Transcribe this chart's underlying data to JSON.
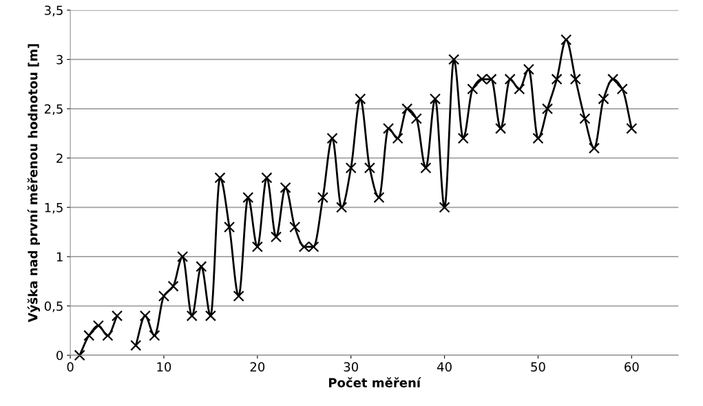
{
  "chart_data": {
    "type": "line",
    "xlabel": "Počet měření",
    "ylabel": "Výška nad první měřenou hodnotou [m]",
    "x": [
      1,
      2,
      3,
      4,
      5,
      6,
      7,
      8,
      9,
      10,
      11,
      12,
      13,
      14,
      15,
      16,
      17,
      18,
      19,
      20,
      21,
      22,
      23,
      24,
      25,
      26,
      27,
      28,
      29,
      30,
      31,
      32,
      33,
      34,
      35,
      36,
      37,
      38,
      39,
      40,
      41,
      42,
      43,
      44,
      45,
      46,
      47,
      48,
      49,
      50,
      51,
      52,
      53,
      54,
      55,
      56,
      57,
      58,
      59,
      60
    ],
    "series": [
      {
        "color": "#000000",
        "values": [
          0,
          0.2,
          0.3,
          0.2,
          0.4,
          null,
          0.1,
          0.4,
          0.2,
          0.6,
          0.7,
          1.0,
          0.4,
          0.9,
          0.4,
          1.8,
          1.3,
          0.6,
          1.6,
          1.1,
          1.8,
          1.2,
          1.7,
          1.3,
          1.1,
          1.1,
          1.6,
          2.2,
          1.5,
          1.9,
          2.6,
          1.9,
          1.6,
          2.3,
          2.2,
          2.5,
          2.4,
          1.9,
          2.6,
          1.5,
          3.0,
          2.2,
          2.7,
          2.8,
          2.8,
          2.3,
          2.8,
          2.7,
          2.9,
          2.2,
          2.5,
          2.8,
          3.2,
          2.8,
          2.4,
          2.1,
          2.6,
          2.8,
          2.7,
          2.3
        ]
      }
    ],
    "xlim": [
      0,
      65
    ],
    "xticks": [
      0,
      10,
      20,
      30,
      40,
      50,
      60
    ],
    "ylim": [
      0,
      3.5
    ],
    "yticks": [
      0,
      {
        "value": 0.5,
        "label": "0,5"
      },
      1,
      {
        "value": 1.5,
        "label": "1,5"
      },
      2,
      {
        "value": 2.5,
        "label": "2,5"
      },
      3,
      {
        "value": 3.5,
        "label": "3,5"
      }
    ],
    "grid": "y",
    "marker": "cross",
    "line_style": "solid",
    "legend": false
  }
}
